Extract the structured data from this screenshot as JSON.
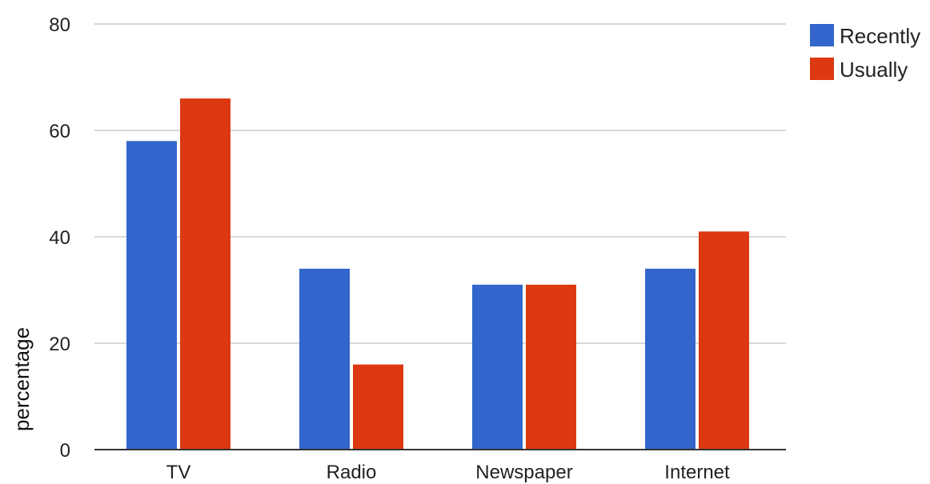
{
  "chart_data": {
    "type": "bar",
    "categories": [
      "TV",
      "Radio",
      "Newspaper",
      "Internet"
    ],
    "series": [
      {
        "name": "Recently",
        "color": "#3366cc",
        "values": [
          58,
          34,
          31,
          34
        ]
      },
      {
        "name": "Usually",
        "color": "#dc3912",
        "values": [
          66,
          16,
          31,
          41
        ]
      }
    ],
    "xlabel": "",
    "ylabel": "percentage",
    "ylim": [
      0,
      80
    ],
    "yticks": [
      "0",
      "20",
      "40",
      "60",
      "80"
    ],
    "grid": true,
    "legend": "right"
  }
}
